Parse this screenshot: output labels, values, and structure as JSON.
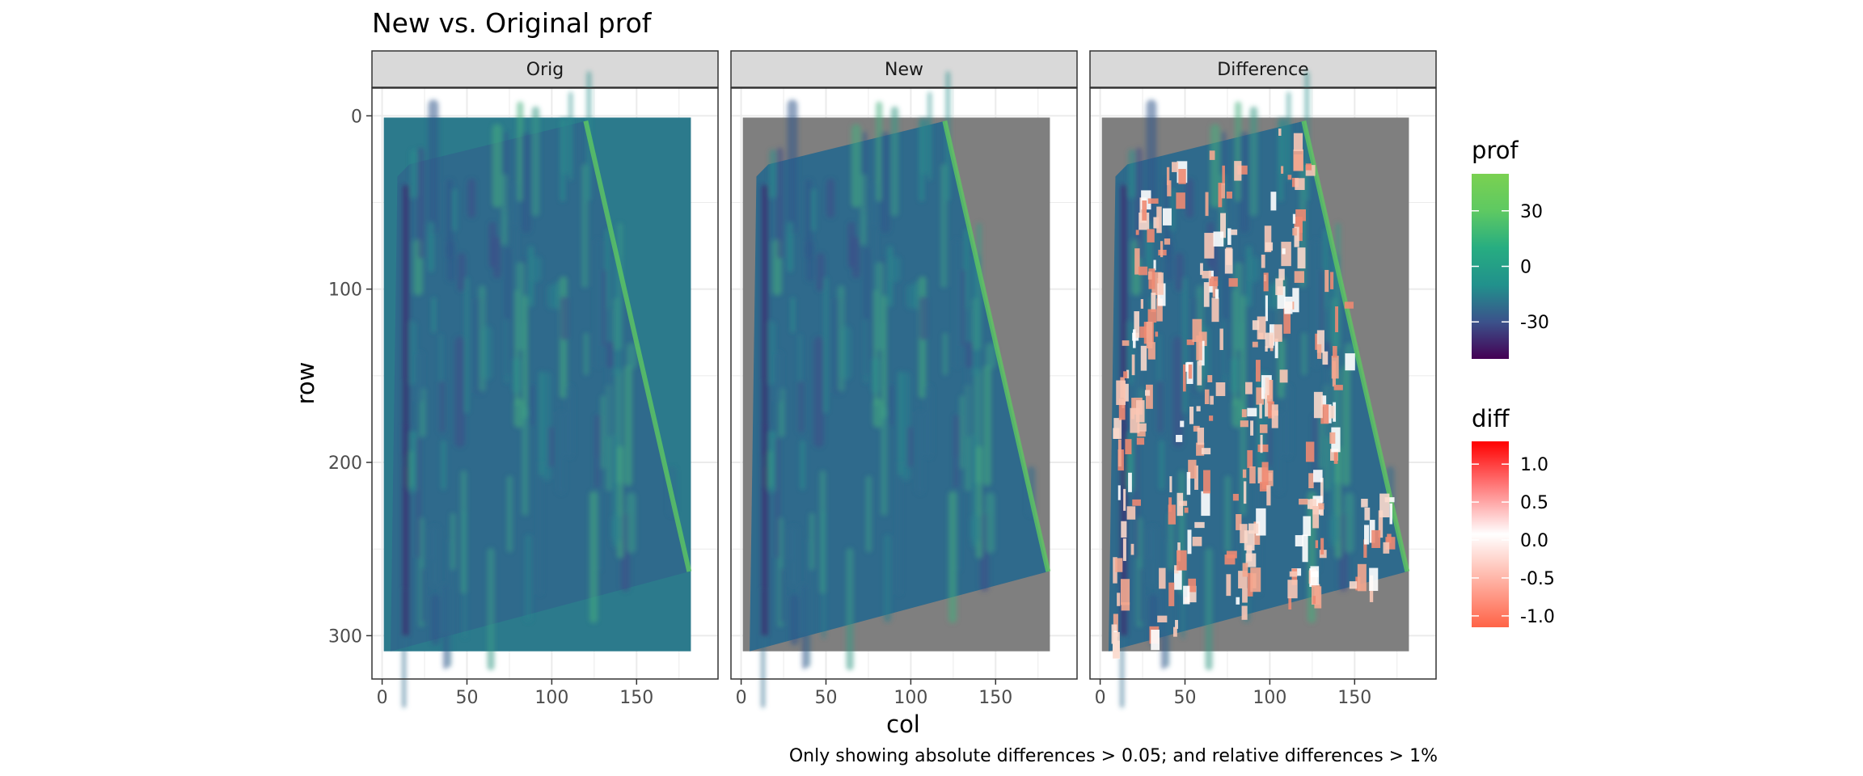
{
  "chart_data": {
    "type": "heatmap",
    "title": "New vs. Original prof",
    "caption": "Only showing absolute differences > 0.05; and relative differences > 1%",
    "xlabel": "col",
    "ylabel": "row",
    "xlim": [
      -6,
      198
    ],
    "ylim": [
      325,
      -16
    ],
    "x_ticks": [
      0,
      50,
      100,
      150
    ],
    "x_tick_labels": [
      "0",
      "50",
      "100",
      "150"
    ],
    "y_ticks": [
      0,
      100,
      200,
      300
    ],
    "y_tick_labels": [
      "0",
      "100",
      "200",
      "300"
    ],
    "grid": true,
    "raster_extent": {
      "col": [
        1,
        182
      ],
      "row": [
        1,
        309
      ]
    },
    "valid_region": [
      [
        9,
        35
      ],
      [
        16,
        28
      ],
      [
        120,
        3
      ],
      [
        181,
        263
      ],
      [
        5,
        309
      ]
    ],
    "panels": [
      {
        "name": "Orig",
        "fill": "prof",
        "background": "#2c7a8c"
      },
      {
        "name": "New",
        "fill": "prof",
        "background": "#7f7f7f"
      },
      {
        "name": "Difference",
        "fill": "diff",
        "background": "#7f7f7f"
      }
    ],
    "legends": [
      {
        "title": "prof",
        "type": "gradient",
        "colors": [
          "#440154",
          "#3b528b",
          "#21918c",
          "#27ad81",
          "#5ec962",
          "#7ad151"
        ],
        "limits": [
          -50,
          50
        ],
        "breaks": [
          30,
          0,
          -30
        ],
        "labels": [
          "30",
          "0",
          "-30"
        ]
      },
      {
        "title": "diff",
        "type": "gradient",
        "colors": [
          "#ff6347",
          "#ffffff",
          "#ff0000"
        ],
        "limits": [
          -1.15,
          1.3
        ],
        "breaks": [
          1.0,
          0.5,
          0.0,
          -0.5,
          -1.0
        ],
        "labels": [
          "1.0",
          "0.5",
          "0.0",
          "-0.5",
          "-1.0"
        ]
      }
    ]
  }
}
